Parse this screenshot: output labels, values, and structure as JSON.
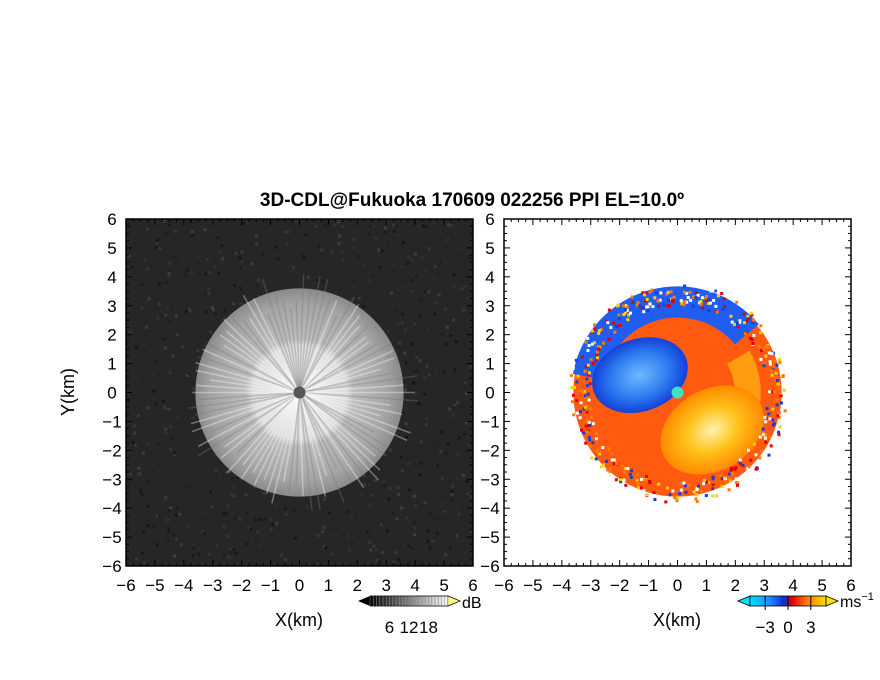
{
  "title": "3D-CDL@Fukuoka 170609 022256 PPI EL=10.0º",
  "chart_data": [
    {
      "type": "heatmap",
      "field": "echo intensity",
      "xlabel": "X(km)",
      "ylabel": "Y(km)",
      "xlim": [
        -6,
        6
      ],
      "ylim": [
        -6,
        6
      ],
      "xticks": [
        "−6",
        "−5",
        "−4",
        "−3",
        "−2",
        "−1",
        "0",
        "1",
        "2",
        "3",
        "4",
        "5",
        "6"
      ],
      "yticks": [
        "6",
        "5",
        "4",
        "3",
        "2",
        "1",
        "0",
        "−1",
        "−2",
        "−3",
        "−4",
        "−5",
        "−6"
      ],
      "colorbar": {
        "unit": "dB",
        "ticks": [
          "6",
          "12",
          "18"
        ],
        "range": [
          0,
          24
        ],
        "cmap": "gray"
      },
      "echo_radius_km": 3.6,
      "inner_bright_radius_km": 1.8
    },
    {
      "type": "heatmap",
      "field": "Doppler velocity",
      "xlabel": "X(km)",
      "xlim": [
        -6,
        6
      ],
      "ylim": [
        -6,
        6
      ],
      "xticks": [
        "−6",
        "−5",
        "−4",
        "−3",
        "−2",
        "−1",
        "0",
        "1",
        "2",
        "3",
        "4",
        "5",
        "6"
      ],
      "yticks": [
        "6",
        "5",
        "4",
        "3",
        "2",
        "1",
        "0",
        "−1",
        "−2",
        "−3",
        "−4",
        "−5",
        "−6"
      ],
      "colorbar": {
        "unit": "ms",
        "unit_sup": "−1",
        "ticks": [
          "−3",
          "0",
          "3"
        ],
        "range": [
          -5,
          5
        ],
        "cmap": "blue-red-yellow"
      },
      "echo_radius_km": 3.6,
      "negative_core_center_km": [
        -1.3,
        0.6
      ],
      "positive_core_center_km": [
        1.2,
        -1.3
      ]
    }
  ]
}
